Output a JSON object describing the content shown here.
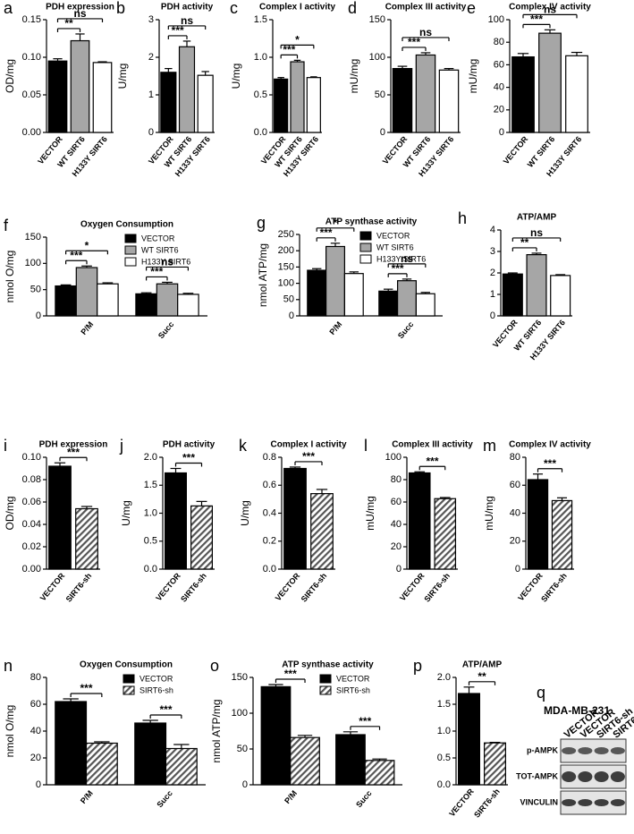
{
  "chart_data": [
    {
      "panel": "a",
      "type": "bar",
      "title": "PDH expression",
      "ylabel": "OD/mg",
      "categories": [
        "VECTOR",
        "WT SIRT6",
        "H133Y SIRT6"
      ],
      "values": [
        0.095,
        0.122,
        0.093
      ],
      "errors": [
        0.003,
        0.009,
        0.001
      ],
      "fills": [
        "#000000",
        "#a6a6a6",
        "#ffffff"
      ],
      "ylim": [
        0,
        0.15
      ],
      "yticks": [
        {
          "value": 0,
          "label": "0.00"
        },
        {
          "value": 0.05,
          "label": "0.05"
        },
        {
          "value": 0.1,
          "label": "0.10"
        },
        {
          "value": 0.15,
          "label": "0.15"
        }
      ],
      "annotations": [
        {
          "text": "**",
          "from": 0,
          "to": 1
        },
        {
          "text": "ns",
          "from": 0,
          "to": 2
        }
      ]
    },
    {
      "panel": "b",
      "type": "bar",
      "title": "PDH activity",
      "ylabel": "U/mg",
      "categories": [
        "VECTOR",
        "WT SIRT6",
        "H133Y SIRT6"
      ],
      "values": [
        1.6,
        2.28,
        1.52
      ],
      "errors": [
        0.1,
        0.15,
        0.1
      ],
      "fills": [
        "#000000",
        "#a6a6a6",
        "#ffffff"
      ],
      "ylim": [
        0,
        3
      ],
      "yticks": [
        0,
        1,
        2,
        3
      ],
      "annotations": [
        {
          "text": "***",
          "from": 0,
          "to": 1
        },
        {
          "text": "ns",
          "from": 0,
          "to": 2
        }
      ]
    },
    {
      "panel": "c",
      "type": "bar",
      "title": "Complex I activity",
      "ylabel": "U/mg",
      "categories": [
        "VECTOR",
        "WT SIRT6",
        "H133Y SIRT6"
      ],
      "values": [
        0.71,
        0.94,
        0.73
      ],
      "errors": [
        0.02,
        0.02,
        0.01
      ],
      "fills": [
        "#000000",
        "#a6a6a6",
        "#ffffff"
      ],
      "ylim": [
        0,
        1.5
      ],
      "yticks": [
        {
          "value": 0,
          "label": "0.0"
        },
        {
          "value": 0.5,
          "label": "0.5"
        },
        {
          "value": 1,
          "label": "1.0"
        },
        {
          "value": 1.5,
          "label": "1.5"
        }
      ],
      "annotations": [
        {
          "text": "***",
          "from": 0,
          "to": 1
        },
        {
          "text": "*",
          "from": 0,
          "to": 2
        }
      ]
    },
    {
      "panel": "d",
      "type": "bar",
      "title": "Complex III activity",
      "ylabel": "mU/mg",
      "categories": [
        "VECTOR",
        "WT SIRT6",
        "H133Y SIRT6"
      ],
      "values": [
        85,
        103,
        83
      ],
      "errors": [
        3,
        3,
        2
      ],
      "fills": [
        "#000000",
        "#a6a6a6",
        "#ffffff"
      ],
      "ylim": [
        0,
        150
      ],
      "yticks": [
        0,
        50,
        100,
        150
      ],
      "annotations": [
        {
          "text": "***",
          "from": 0,
          "to": 1
        },
        {
          "text": "ns",
          "from": 0,
          "to": 2
        }
      ]
    },
    {
      "panel": "e",
      "type": "bar",
      "title": "Complex IV activity",
      "ylabel": "mU/mg",
      "categories": [
        "VECTOR",
        "WT SIRT6",
        "H133Y SIRT6"
      ],
      "values": [
        67,
        88,
        68
      ],
      "errors": [
        3,
        3,
        3
      ],
      "fills": [
        "#000000",
        "#a6a6a6",
        "#ffffff"
      ],
      "ylim": [
        0,
        100
      ],
      "yticks": [
        0,
        20,
        40,
        60,
        80,
        100
      ],
      "annotations": [
        {
          "text": "***",
          "from": 0,
          "to": 1
        },
        {
          "text": "ns",
          "from": 0,
          "to": 2
        }
      ]
    },
    {
      "panel": "f",
      "type": "grouped_bar",
      "title": "Oxygen Consumption",
      "ylabel": "nmol O/mg",
      "categories": [
        "P/M",
        "Succ"
      ],
      "series": [
        {
          "name": "VECTOR",
          "color": "#000000",
          "values": [
            57,
            42
          ],
          "errors": [
            2,
            2
          ]
        },
        {
          "name": "WT SIRT6",
          "color": "#a6a6a6",
          "values": [
            92,
            61
          ],
          "errors": [
            3,
            3
          ]
        },
        {
          "name": "H133Y SIRT6",
          "color": "#ffffff",
          "values": [
            61,
            41
          ],
          "errors": [
            2,
            2
          ]
        }
      ],
      "ylim": [
        0,
        150
      ],
      "yticks": [
        0,
        50,
        100,
        150
      ],
      "legend": "upper right",
      "annotations": [
        {
          "text": "***",
          "group": 0,
          "from": 0,
          "to": 1
        },
        {
          "text": "*",
          "group": 0,
          "from": 0,
          "to": 2
        },
        {
          "text": "***",
          "group": 1,
          "from": 0,
          "to": 1
        },
        {
          "text": "ns",
          "group": 1,
          "from": 0,
          "to": 2
        }
      ]
    },
    {
      "panel": "g",
      "type": "grouped_bar",
      "title": "ATP synthase activity",
      "ylabel": "nmol ATP/mg",
      "categories": [
        "P/M",
        "Succ"
      ],
      "series": [
        {
          "name": "VECTOR",
          "color": "#000000",
          "values": [
            140,
            76
          ],
          "errors": [
            5,
            6
          ]
        },
        {
          "name": "WT SIRT6",
          "color": "#a6a6a6",
          "values": [
            213,
            108
          ],
          "errors": [
            10,
            5
          ]
        },
        {
          "name": "H133Y SIRT6",
          "color": "#ffffff",
          "values": [
            130,
            68
          ],
          "errors": [
            5,
            4
          ]
        }
      ],
      "ylim": [
        0,
        250
      ],
      "yticks": [
        0,
        50,
        100,
        150,
        200,
        250
      ],
      "legend": "upper right",
      "annotations": [
        {
          "text": "***",
          "group": 0,
          "from": 0,
          "to": 1
        },
        {
          "text": "*",
          "group": 0,
          "from": 0,
          "to": 2
        },
        {
          "text": "***",
          "group": 1,
          "from": 0,
          "to": 1
        },
        {
          "text": "ns",
          "group": 1,
          "from": 0,
          "to": 2
        }
      ]
    },
    {
      "panel": "h",
      "type": "bar",
      "title": "ATP/AMP",
      "categories": [
        "VECTOR",
        "WT SIRT6",
        "H133Y SIRT6"
      ],
      "values": [
        1.95,
        2.85,
        1.88
      ],
      "errors": [
        0.05,
        0.07,
        0.04
      ],
      "fills": [
        "#000000",
        "#a6a6a6",
        "#ffffff"
      ],
      "ylim": [
        0,
        4
      ],
      "yticks": [
        0,
        1,
        2,
        3,
        4
      ],
      "annotations": [
        {
          "text": "**",
          "from": 0,
          "to": 1
        },
        {
          "text": "ns",
          "from": 0,
          "to": 2
        }
      ]
    },
    {
      "panel": "i",
      "type": "bar",
      "title": "PDH expression",
      "ylabel": "OD/mg",
      "categories": [
        "VECTOR",
        "SIRT6-sh"
      ],
      "values": [
        0.092,
        0.054
      ],
      "errors": [
        0.003,
        0.002
      ],
      "fills": [
        "#000000",
        "hatch"
      ],
      "ylim": [
        0,
        0.1
      ],
      "yticks": [
        {
          "value": 0,
          "label": "0.00"
        },
        {
          "value": 0.02,
          "label": "0.02"
        },
        {
          "value": 0.04,
          "label": "0.04"
        },
        {
          "value": 0.06,
          "label": "0.06"
        },
        {
          "value": 0.08,
          "label": "0.08"
        },
        {
          "value": 0.1,
          "label": "0.10"
        }
      ],
      "annotations": [
        {
          "text": "***",
          "from": 0,
          "to": 1
        }
      ]
    },
    {
      "panel": "j",
      "type": "bar",
      "title": "PDH activity",
      "ylabel": "U/mg",
      "categories": [
        "VECTOR",
        "SIRT6-sh"
      ],
      "values": [
        1.72,
        1.13
      ],
      "errors": [
        0.08,
        0.08
      ],
      "fills": [
        "#000000",
        "hatch"
      ],
      "ylim": [
        0,
        2
      ],
      "yticks": [
        {
          "value": 0,
          "label": "0.0"
        },
        {
          "value": 0.5,
          "label": "0.5"
        },
        {
          "value": 1,
          "label": "1.0"
        },
        {
          "value": 1.5,
          "label": "1.5"
        },
        {
          "value": 2,
          "label": "2.0"
        }
      ],
      "annotations": [
        {
          "text": "***",
          "from": 0,
          "to": 1
        }
      ]
    },
    {
      "panel": "k",
      "type": "bar",
      "title": "Complex I activity",
      "ylabel": "U/mg",
      "categories": [
        "VECTOR",
        "SIRT6-sh"
      ],
      "values": [
        0.72,
        0.54
      ],
      "errors": [
        0.01,
        0.03
      ],
      "fills": [
        "#000000",
        "hatch"
      ],
      "ylim": [
        0,
        0.8
      ],
      "yticks": [
        {
          "value": 0,
          "label": "0.0"
        },
        {
          "value": 0.2,
          "label": "0.2"
        },
        {
          "value": 0.4,
          "label": "0.4"
        },
        {
          "value": 0.6,
          "label": "0.6"
        },
        {
          "value": 0.8,
          "label": "0.8"
        }
      ],
      "annotations": [
        {
          "text": "***",
          "from": 0,
          "to": 1
        }
      ]
    },
    {
      "panel": "l",
      "type": "bar",
      "title": "Complex III activity",
      "ylabel": "mU/mg",
      "categories": [
        "VECTOR",
        "SIRT6-sh"
      ],
      "values": [
        86,
        63
      ],
      "errors": [
        1,
        1
      ],
      "fills": [
        "#000000",
        "hatch"
      ],
      "ylim": [
        0,
        100
      ],
      "yticks": [
        0,
        20,
        40,
        60,
        80,
        100
      ],
      "annotations": [
        {
          "text": "***",
          "from": 0,
          "to": 1
        }
      ]
    },
    {
      "panel": "m",
      "type": "bar",
      "title": "Complex IV activity",
      "ylabel": "mU/mg",
      "categories": [
        "VECTOR",
        "SIRT6-sh"
      ],
      "values": [
        64,
        49
      ],
      "errors": [
        4,
        2
      ],
      "fills": [
        "#000000",
        "hatch"
      ],
      "ylim": [
        0,
        80
      ],
      "yticks": [
        0,
        20,
        40,
        60,
        80
      ],
      "annotations": [
        {
          "text": "***",
          "from": 0,
          "to": 1
        }
      ]
    },
    {
      "panel": "n",
      "type": "grouped_bar",
      "title": "Oxygen Consumption",
      "ylabel": "nmol O/mg",
      "categories": [
        "P/M",
        "Succ"
      ],
      "series": [
        {
          "name": "VECTOR",
          "color": "#000000",
          "values": [
            62,
            46
          ],
          "errors": [
            2,
            2
          ]
        },
        {
          "name": "SIRT6-sh",
          "color": "hatch",
          "values": [
            31,
            27
          ],
          "errors": [
            1,
            3
          ]
        }
      ],
      "ylim": [
        0,
        80
      ],
      "yticks": [
        0,
        20,
        40,
        60,
        80
      ],
      "legend": "upper right",
      "annotations": [
        {
          "text": "***",
          "group": 0,
          "from": 0,
          "to": 1
        },
        {
          "text": "***",
          "group": 1,
          "from": 0,
          "to": 1
        }
      ]
    },
    {
      "panel": "o",
      "type": "grouped_bar",
      "title": "ATP synthase activity",
      "ylabel": "nmol ATP/mg",
      "categories": [
        "P/M",
        "Succ"
      ],
      "series": [
        {
          "name": "VECTOR",
          "color": "#000000",
          "values": [
            137,
            70
          ],
          "errors": [
            3,
            4
          ]
        },
        {
          "name": "SIRT6-sh",
          "color": "hatch",
          "values": [
            66,
            34
          ],
          "errors": [
            3,
            2
          ]
        }
      ],
      "ylim": [
        0,
        150
      ],
      "yticks": [
        0,
        50,
        100,
        150
      ],
      "legend": "upper right",
      "annotations": [
        {
          "text": "***",
          "group": 0,
          "from": 0,
          "to": 1
        },
        {
          "text": "***",
          "group": 1,
          "from": 0,
          "to": 1
        }
      ]
    },
    {
      "panel": "p",
      "type": "bar",
      "title": "ATP/AMP",
      "categories": [
        "VECTOR",
        "SIRT6-sh"
      ],
      "values": [
        1.7,
        0.78
      ],
      "errors": [
        0.12,
        0.01
      ],
      "fills": [
        "#000000",
        "hatch"
      ],
      "ylim": [
        0,
        2
      ],
      "yticks": [
        {
          "value": 0,
          "label": "0.0"
        },
        {
          "value": 0.5,
          "label": "0.5"
        },
        {
          "value": 1,
          "label": "1.0"
        },
        {
          "value": 1.5,
          "label": "1.5"
        },
        {
          "value": 2,
          "label": "2.0"
        }
      ],
      "annotations": [
        {
          "text": "**",
          "from": 0,
          "to": 1
        }
      ]
    },
    {
      "panel": "q",
      "type": "blot",
      "title": "MDA-MB-231",
      "lanes": [
        "VECTOR",
        "VECTOR",
        "SIRT6-sh",
        "SIRT6-sh"
      ],
      "rows": [
        "p-AMPK",
        "TOT-AMPK",
        "VINCULIN"
      ]
    }
  ]
}
